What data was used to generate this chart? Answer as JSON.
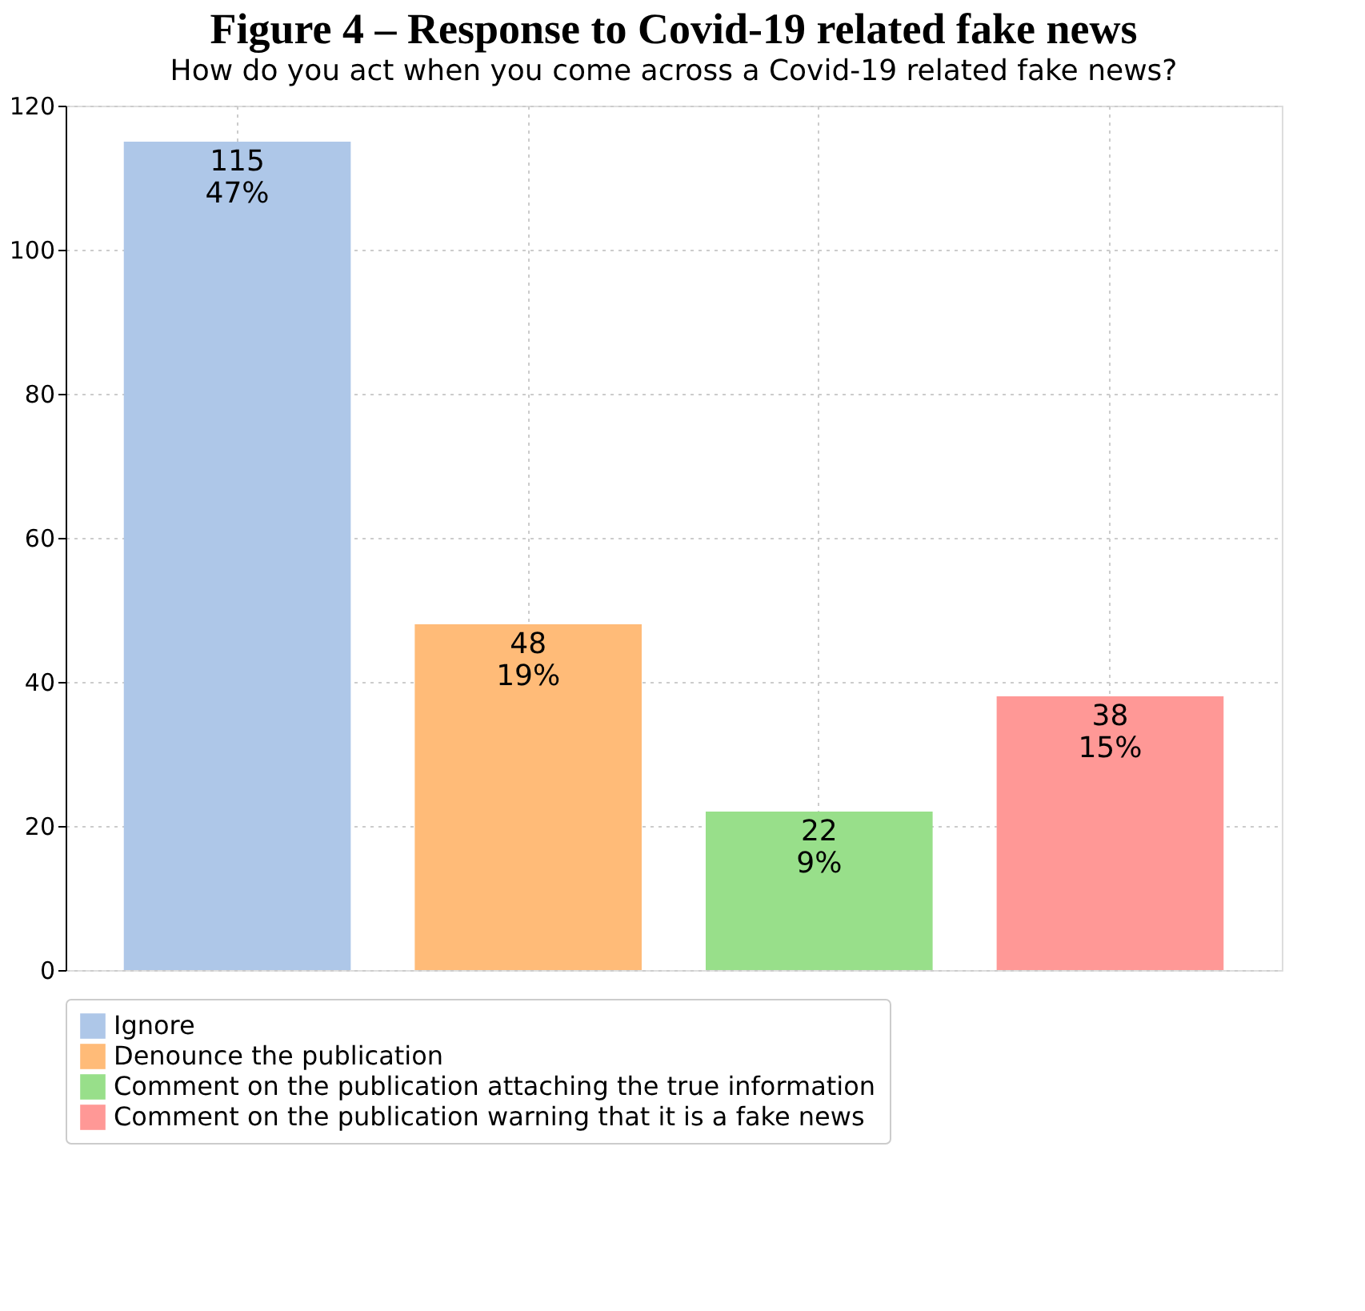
{
  "chart_data": {
    "type": "bar",
    "title": "Figure 4 – Response to Covid-19 related fake news",
    "subtitle": "How do you act when you come across a Covid-19 related fake news?",
    "categories": [
      null,
      null,
      null,
      null
    ],
    "series": [
      {
        "name": "Ignore",
        "color": "#aec7e8",
        "values": [
          115,
          null,
          null,
          null
        ],
        "value_labels": [
          "115\n47%",
          null,
          null,
          null
        ]
      },
      {
        "name": "Denounce the publication",
        "color": "#ffbb78",
        "values": [
          null,
          48,
          null,
          null
        ],
        "value_labels": [
          null,
          "48\n19%",
          null,
          null
        ]
      },
      {
        "name": "Comment on the publication attaching the true information",
        "color": "#98df8a",
        "values": [
          null,
          null,
          22,
          null
        ],
        "value_labels": [
          null,
          null,
          "22\n9%",
          null
        ]
      },
      {
        "name": "Comment on the publication warning that it is a fake news",
        "color": "#ff9896",
        "values": [
          null,
          null,
          null,
          38
        ],
        "value_labels": [
          null,
          null,
          null,
          "38\n15%"
        ]
      }
    ],
    "ylim": [
      0,
      120
    ],
    "yticks": [
      0,
      20,
      40,
      60,
      80,
      100,
      120
    ],
    "grid": true,
    "legend": "bottom",
    "tick_labels": "y"
  }
}
